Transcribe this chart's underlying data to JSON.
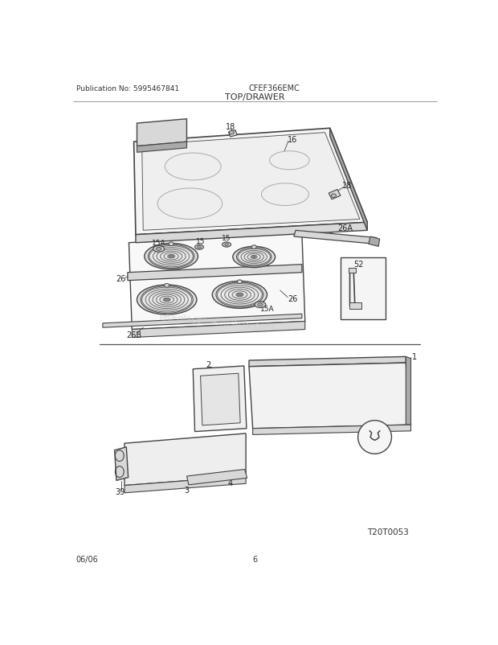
{
  "bg_color": "#ffffff",
  "title_center": "TOP/DRAWER",
  "pub_no": "Publication No: 5995467841",
  "model": "CFEF366EMC",
  "date": "06/06",
  "page": "6",
  "diagram_id": "T20T0053",
  "fig_width": 6.2,
  "fig_height": 8.03,
  "dpi": 100,
  "line_color": "#444444",
  "fill_light": "#f2f2f2",
  "fill_mid": "#d8d8d8",
  "fill_dark": "#aaaaaa"
}
